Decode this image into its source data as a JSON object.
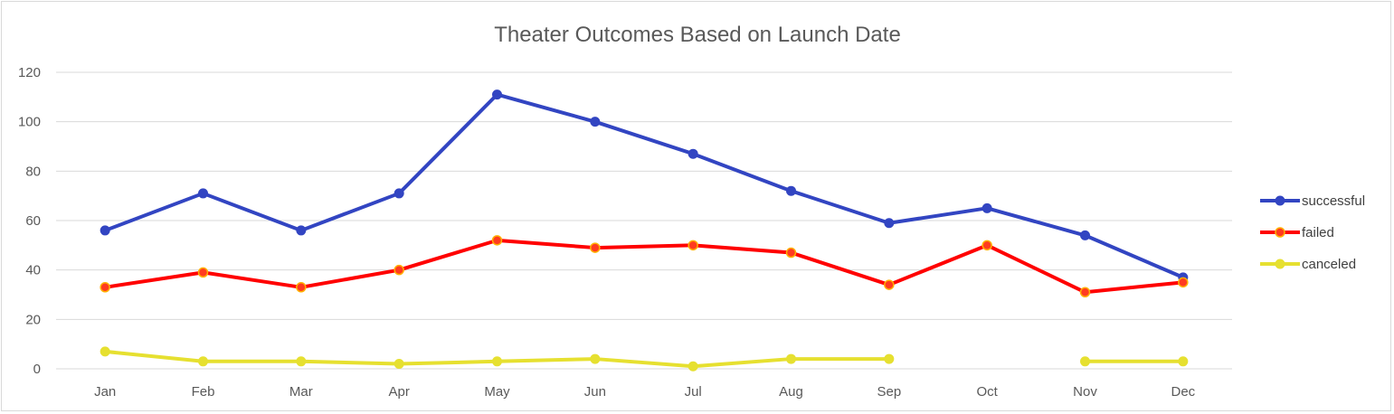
{
  "chart_data": {
    "type": "line",
    "title": "Theater Outcomes Based on Launch Date",
    "xlabel": "",
    "ylabel": "",
    "categories": [
      "Jan",
      "Feb",
      "Mar",
      "Apr",
      "May",
      "Jun",
      "Jul",
      "Aug",
      "Sep",
      "Oct",
      "Nov",
      "Dec"
    ],
    "y_ticks": [
      "0",
      "20",
      "40",
      "60",
      "80",
      "100",
      "120"
    ],
    "ylim": [
      0,
      120
    ],
    "grid": true,
    "legend_position": "right",
    "series": [
      {
        "name": "successful",
        "color": "#3245c2",
        "values": [
          56,
          71,
          56,
          71,
          111,
          100,
          87,
          72,
          59,
          65,
          54,
          37
        ]
      },
      {
        "name": "failed",
        "color": "#ff0000",
        "values": [
          33,
          39,
          33,
          40,
          52,
          49,
          50,
          47,
          34,
          50,
          31,
          35
        ]
      },
      {
        "name": "canceled",
        "color": "#e6e030",
        "values": [
          7,
          3,
          3,
          2,
          3,
          4,
          1,
          4,
          4,
          null,
          3,
          3
        ]
      }
    ]
  }
}
